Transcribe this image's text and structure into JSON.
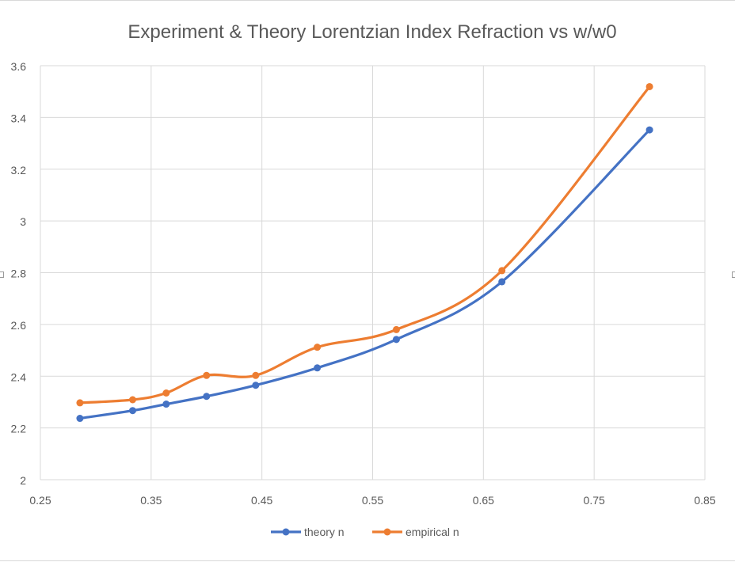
{
  "chart_data": {
    "type": "line",
    "title": "Experiment & Theory Lorentzian Index Refraction vs w/w0",
    "xlabel": "",
    "ylabel": "",
    "xlim": [
      0.25,
      0.85
    ],
    "ylim": [
      2,
      3.6
    ],
    "x_ticks": [
      "0.25",
      "0.35",
      "0.45",
      "0.55",
      "0.65",
      "0.75",
      "0.85"
    ],
    "y_ticks": [
      "2",
      "2.2",
      "2.4",
      "2.6",
      "2.8",
      "3",
      "3.2",
      "3.4",
      "3.6"
    ],
    "grid": true,
    "smooth": true,
    "legend_position": "bottom",
    "series": [
      {
        "name": "theory n",
        "color": "#4472C4",
        "x": [
          0.2857,
          0.3333,
          0.3636,
          0.4,
          0.4444,
          0.5,
          0.5714,
          0.6667,
          0.8
        ],
        "y": [
          2.237,
          2.267,
          2.292,
          2.322,
          2.365,
          2.432,
          2.542,
          2.765,
          3.352
        ]
      },
      {
        "name": "empirical n",
        "color": "#ED7D31",
        "x": [
          0.2857,
          0.3333,
          0.3636,
          0.4,
          0.4444,
          0.5,
          0.5714,
          0.6667,
          0.8
        ],
        "y": [
          2.297,
          2.309,
          2.335,
          2.403,
          2.403,
          2.512,
          2.58,
          2.808,
          3.519
        ]
      }
    ]
  }
}
